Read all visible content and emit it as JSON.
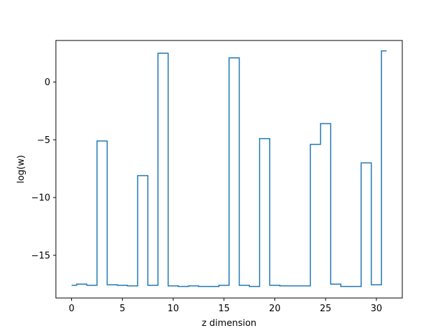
{
  "chart_data": {
    "type": "line",
    "drawstyle": "steps-mid",
    "title": "",
    "xlabel": "z dimension",
    "ylabel": "log(w)",
    "xlim": [
      -1.55,
      32.55
    ],
    "ylim": [
      -18.7,
      3.6
    ],
    "grid": false,
    "legend": "none",
    "line_color": "#1f77b4",
    "x_ticks": [
      0,
      5,
      10,
      15,
      20,
      25,
      30
    ],
    "x_tick_labels": [
      "0",
      "5",
      "10",
      "15",
      "20",
      "25",
      "30"
    ],
    "y_ticks": [
      0,
      -5,
      -10,
      -15
    ],
    "y_tick_labels": [
      "0",
      "−5",
      "−10",
      "−15"
    ],
    "series": [
      {
        "x": [
          0,
          1,
          2,
          3,
          4,
          5,
          6,
          7,
          8,
          9,
          10,
          11,
          12,
          13,
          14,
          15,
          16,
          17,
          18,
          19,
          20,
          21,
          22,
          23,
          24,
          25,
          26,
          27,
          28,
          29,
          30,
          31
        ],
        "values": [
          -17.6,
          -17.5,
          -17.6,
          -5.1,
          -17.55,
          -17.6,
          -17.65,
          -8.1,
          -17.6,
          2.5,
          -17.65,
          -17.7,
          -17.65,
          -17.7,
          -17.7,
          -17.6,
          2.1,
          -17.6,
          -17.7,
          -4.9,
          -17.6,
          -17.65,
          -17.65,
          -17.65,
          -5.4,
          -3.6,
          -17.5,
          -17.7,
          -17.7,
          -7.0,
          -17.55,
          2.7
        ]
      }
    ]
  }
}
